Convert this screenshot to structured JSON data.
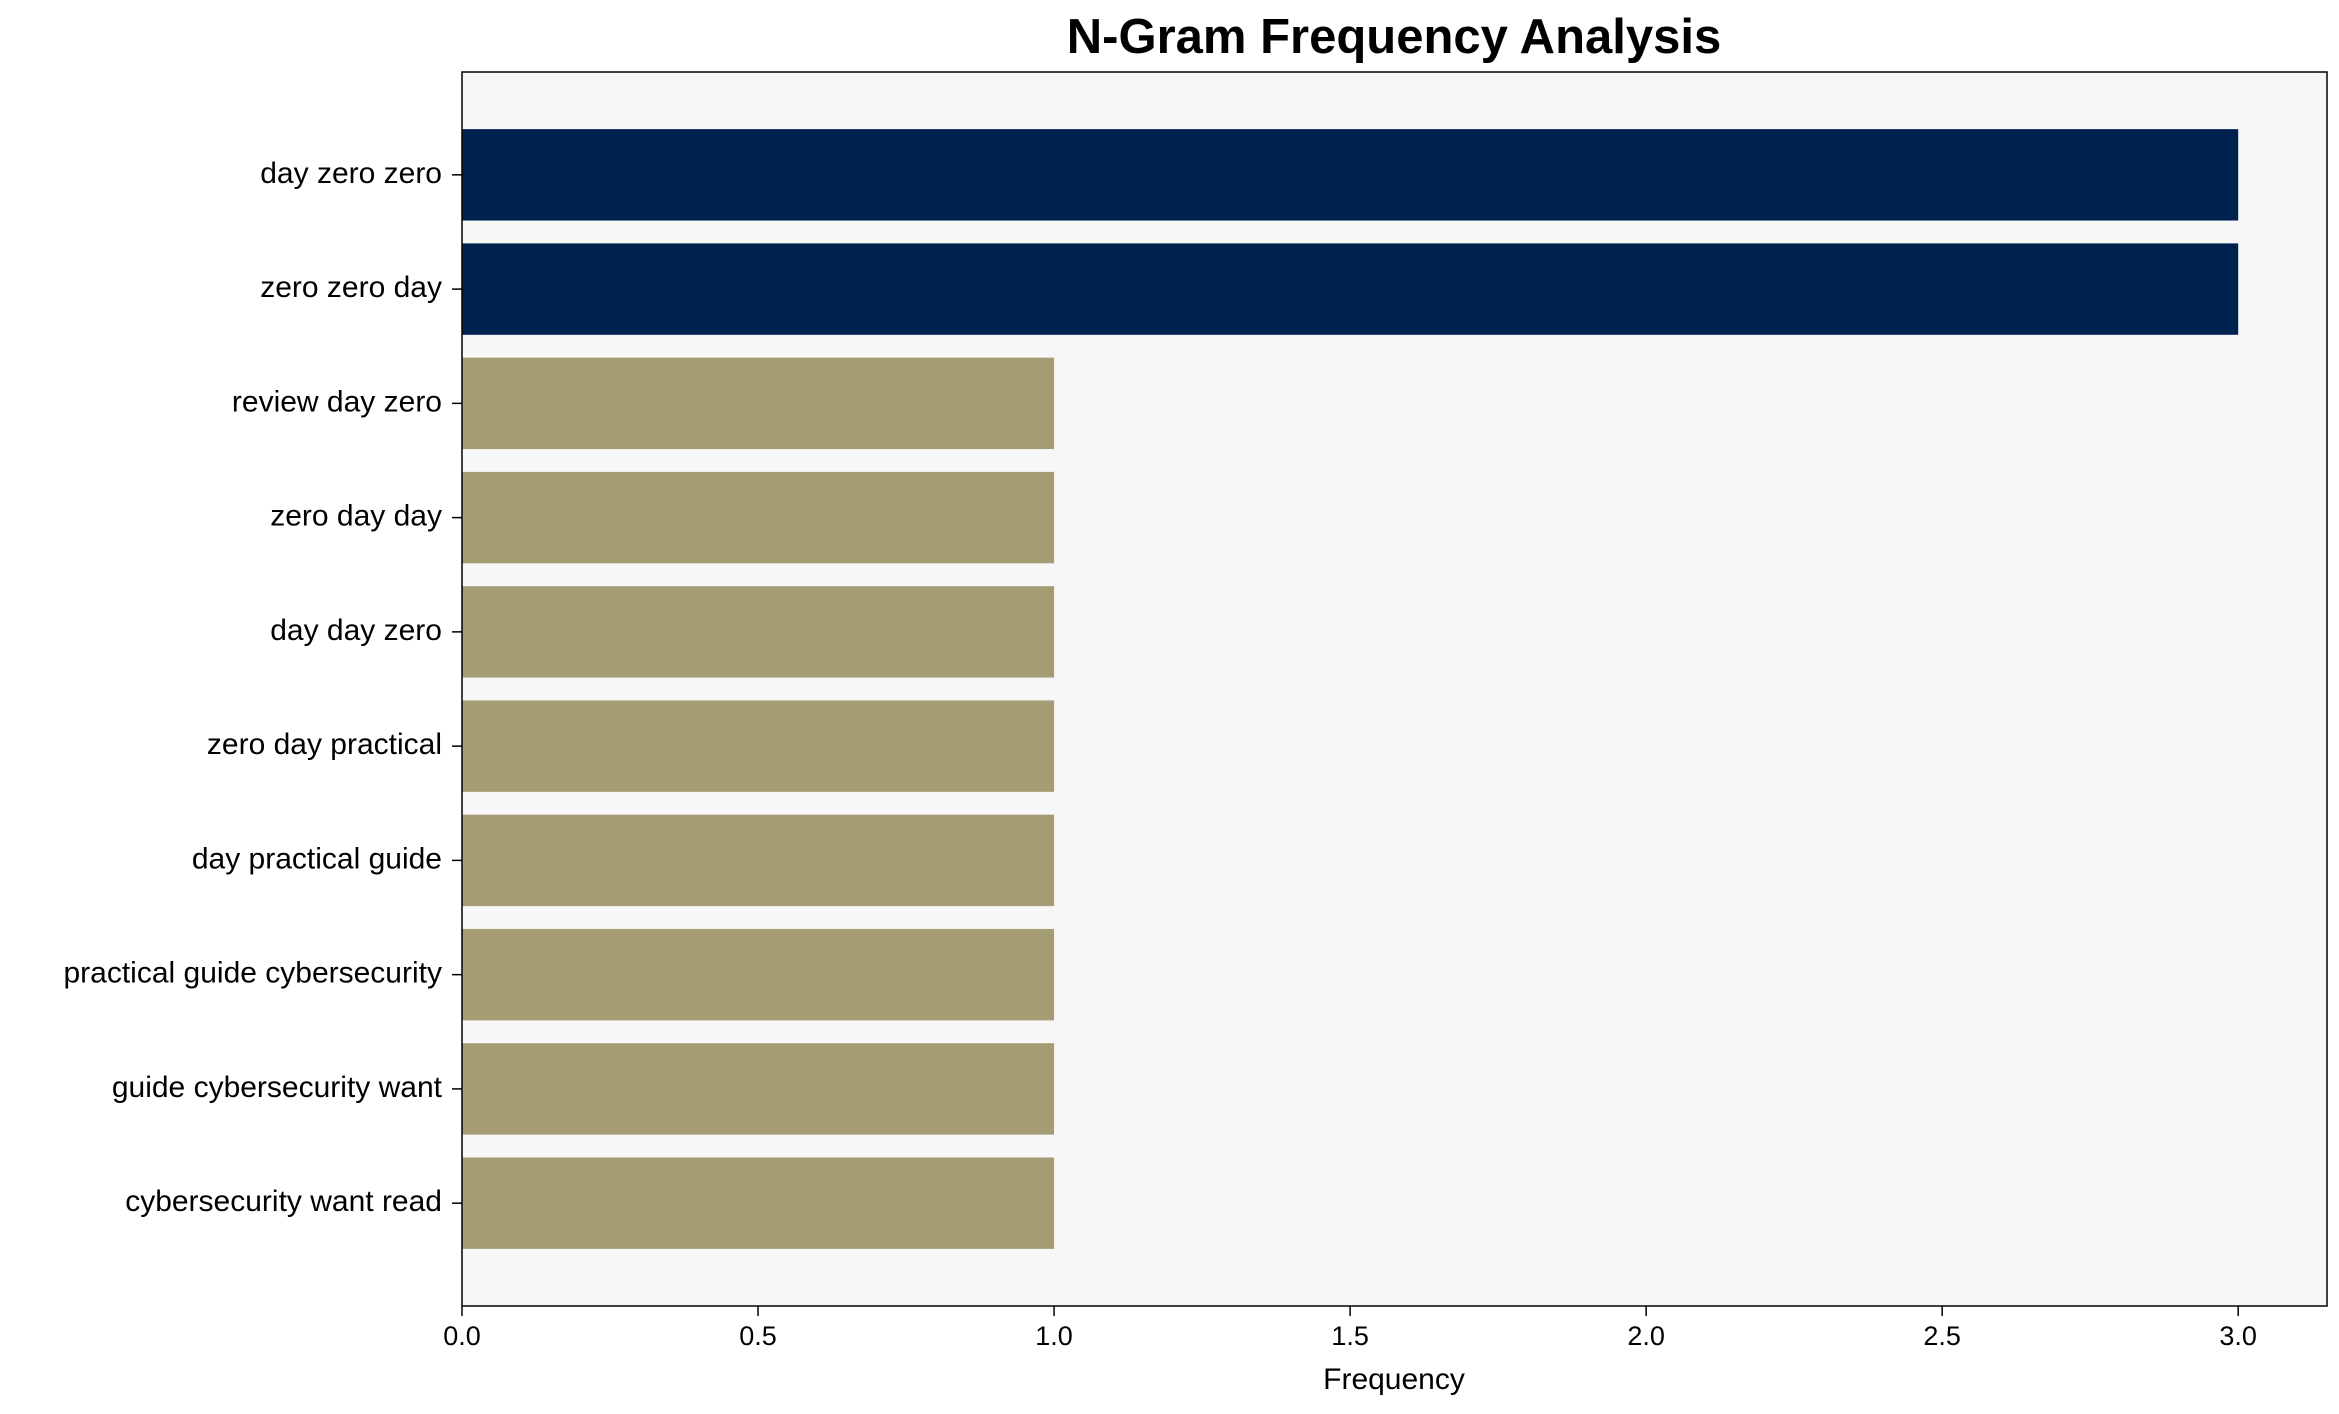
{
  "chart_data": {
    "type": "barh",
    "title": "N-Gram Frequency Analysis",
    "x_label": "Frequency",
    "categories": [
      "day zero zero",
      "zero zero day",
      "review day zero",
      "zero day day",
      "day day zero",
      "zero day practical",
      "day practical guide",
      "practical guide cybersecurity",
      "guide cybersecurity want",
      "cybersecurity want read"
    ],
    "values": [
      3,
      3,
      1,
      1,
      1,
      1,
      1,
      1,
      1,
      1
    ],
    "colors": [
      "#00224e",
      "#00224e",
      "#a59c74",
      "#a59c74",
      "#a59c74",
      "#a59c74",
      "#a59c74",
      "#a59c74",
      "#a59c74",
      "#a59c74"
    ],
    "xlim": [
      0,
      3.15
    ],
    "xticks": [
      {
        "value": 0,
        "label": "0.0"
      },
      0.5,
      {
        "value": 1,
        "label": "1.0"
      },
      1.5,
      {
        "value": 2,
        "label": "2.0"
      },
      2.5,
      {
        "value": 3,
        "label": "3.0"
      }
    ],
    "grid": false
  }
}
